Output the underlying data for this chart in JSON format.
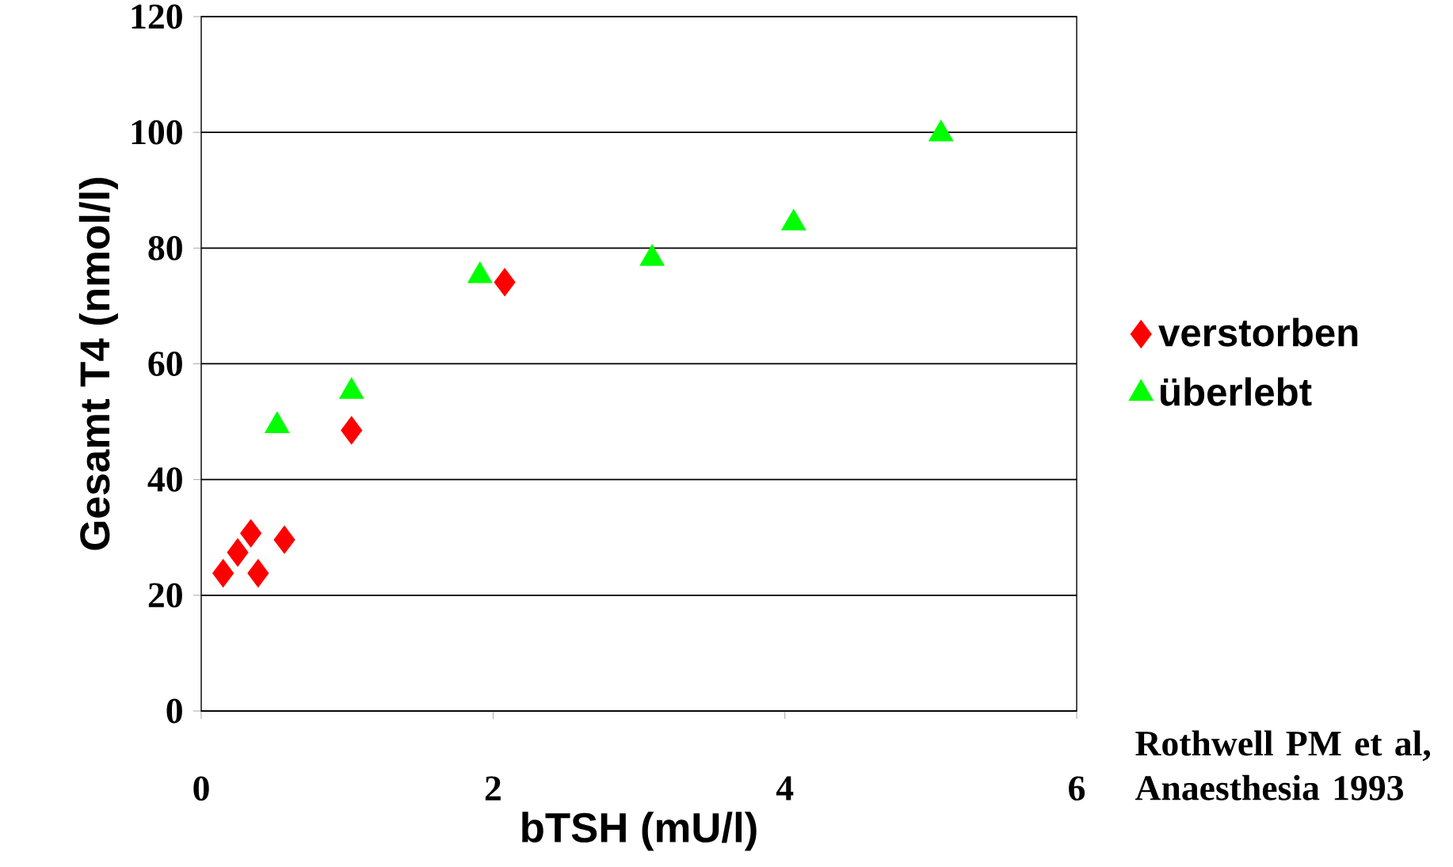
{
  "chart_data": {
    "type": "scatter",
    "xlabel": "bTSH (mU/l)",
    "ylabel": "Gesamt T4 (nmol/l)",
    "xlim": [
      0,
      6
    ],
    "xticks": [
      0,
      2,
      4,
      6
    ],
    "ylim": [
      0,
      120
    ],
    "yticks": [
      0,
      20,
      40,
      60,
      80,
      100,
      120
    ],
    "grid": "y",
    "legend": "right",
    "series": [
      {
        "name": "verstorben",
        "color": "#ff0000",
        "marker": "diamond",
        "x": [
          0.15,
          0.25,
          0.34,
          0.39,
          0.57,
          1.03,
          2.08
        ],
        "values": [
          23.8,
          27.4,
          30.7,
          23.8,
          29.6,
          48.5,
          74.1
        ]
      },
      {
        "name": "überlebt",
        "color": "#00ff00",
        "marker": "triangle",
        "x": [
          0.52,
          1.03,
          1.91,
          3.09,
          4.06,
          5.07
        ],
        "values": [
          49.3,
          55.2,
          75.2,
          78.2,
          84.3,
          99.7
        ]
      }
    ],
    "annotations": [
      "Rothwell PM et al, Anaesthesia 1993"
    ]
  }
}
